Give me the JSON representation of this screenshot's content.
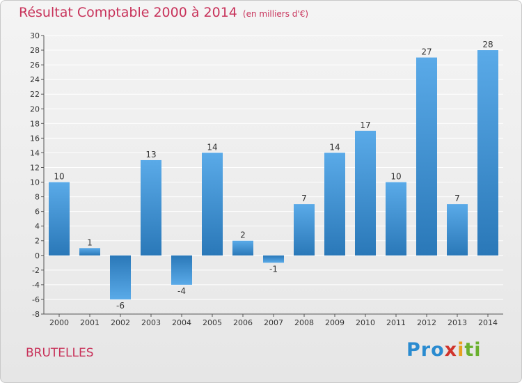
{
  "header": {
    "title": "Résultat Comptable 2000 à 2014",
    "unit": "(en milliers d'€)"
  },
  "footer": {
    "commune": "BRUTELLES",
    "logo_parts": [
      "Pro",
      "x",
      "i",
      "ti"
    ]
  },
  "colors": {
    "title": "#c8325a",
    "bar_light": "#5aaae8",
    "bar_dark": "#2a78b8",
    "grid": "#ffffff",
    "axis": "#555555"
  },
  "chart_data": {
    "type": "bar",
    "title": "Résultat Comptable 2000 à 2014",
    "subtitle": "(en milliers d'€)",
    "xlabel": "",
    "ylabel": "",
    "categories": [
      "2000",
      "2001",
      "2002",
      "2003",
      "2004",
      "2005",
      "2006",
      "2007",
      "2008",
      "2009",
      "2010",
      "2011",
      "2012",
      "2013",
      "2014"
    ],
    "values": [
      10,
      1,
      -6,
      13,
      -4,
      14,
      2,
      -1,
      7,
      14,
      17,
      10,
      27,
      7,
      28
    ],
    "data_labels": [
      "10",
      "1",
      "-6",
      "13",
      "-4",
      "14",
      "2",
      "-1",
      "7",
      "14",
      "17",
      "10",
      "27",
      "7",
      "28"
    ],
    "ylim": [
      -8,
      30
    ],
    "yticks": [
      -8,
      -6,
      -4,
      -2,
      0,
      2,
      4,
      6,
      8,
      10,
      12,
      14,
      16,
      18,
      20,
      22,
      24,
      26,
      28,
      30
    ],
    "grid": true
  }
}
